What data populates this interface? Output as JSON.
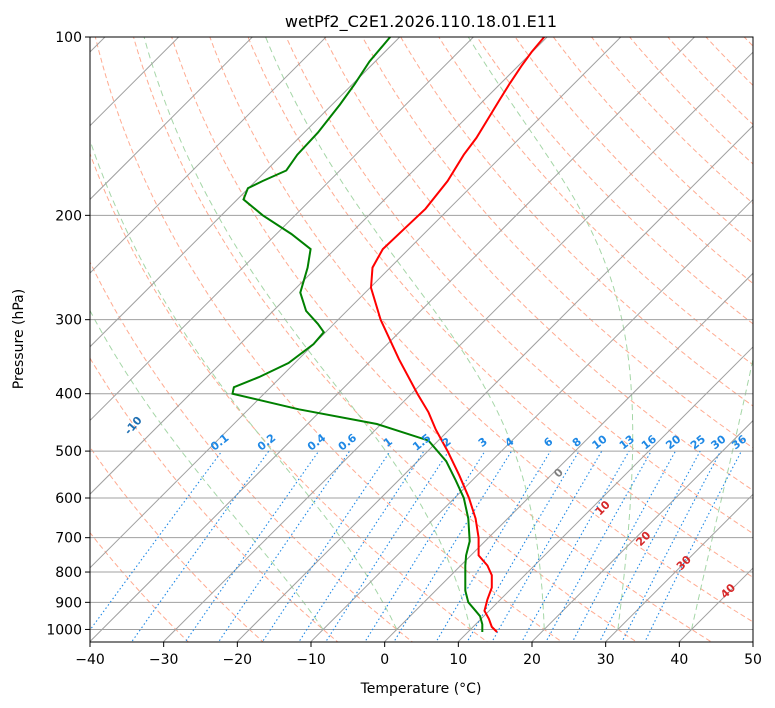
{
  "chart_data": {
    "type": "line",
    "title": "wetPf2_C2E1.2026.110.18.01.E11",
    "xlabel": "Temperature (°C)",
    "ylabel": "Pressure (hPa)",
    "xlim": [
      -40,
      50
    ],
    "ylim": [
      1050,
      100
    ],
    "y_scale": "log",
    "grid": true,
    "x_ticks": [
      "−40",
      "−30",
      "−20",
      "−10",
      "0",
      "10",
      "20",
      "30",
      "40",
      "50"
    ],
    "y_ticks": [
      {
        "p": 1000,
        "label": "1000"
      },
      {
        "p": 900,
        "label": "900"
      },
      {
        "p": 800,
        "label": "800"
      },
      {
        "p": 700,
        "label": "700"
      },
      {
        "p": 600,
        "label": "600"
      },
      {
        "p": 500,
        "label": "500"
      },
      {
        "p": 400,
        "label": "400"
      },
      {
        "p": 300,
        "label": "300"
      },
      {
        "p": 200,
        "label": "200"
      },
      {
        "p": 100,
        "label": "100"
      }
    ],
    "series": [
      {
        "color": "#ff0000",
        "points": [
          [
            15.3,
            1010
          ],
          [
            14.6,
            990
          ],
          [
            14.2,
            960
          ],
          [
            13.6,
            930
          ],
          [
            14.0,
            890
          ],
          [
            14.6,
            850
          ],
          [
            14.6,
            810
          ],
          [
            14.0,
            780
          ],
          [
            12.8,
            750
          ],
          [
            12.8,
            700
          ],
          [
            12.4,
            650
          ],
          [
            11.5,
            600
          ],
          [
            10.2,
            550
          ],
          [
            8.6,
            500
          ],
          [
            7.0,
            460
          ],
          [
            6.0,
            430
          ],
          [
            4.5,
            400
          ],
          [
            2.0,
            350
          ],
          [
            -0.5,
            300
          ],
          [
            -1.8,
            265
          ],
          [
            -1.6,
            245
          ],
          [
            -0.2,
            228
          ],
          [
            2.5,
            212
          ],
          [
            5.6,
            195
          ],
          [
            8.6,
            175
          ],
          [
            10.8,
            158
          ],
          [
            12.5,
            148
          ],
          [
            14.0,
            138
          ],
          [
            15.6,
            128
          ],
          [
            17.0,
            120
          ],
          [
            18.6,
            112
          ],
          [
            20.0,
            106
          ],
          [
            21.7,
            100
          ]
        ]
      },
      {
        "color": "#008000",
        "points": [
          [
            13.3,
            1010
          ],
          [
            13.3,
            980
          ],
          [
            13.0,
            950
          ],
          [
            12.4,
            930
          ],
          [
            11.4,
            900
          ],
          [
            11.0,
            860
          ],
          [
            11.0,
            820
          ],
          [
            11.0,
            780
          ],
          [
            11.1,
            750
          ],
          [
            11.6,
            710
          ],
          [
            11.4,
            650
          ],
          [
            10.8,
            600
          ],
          [
            9.7,
            560
          ],
          [
            8.4,
            520
          ],
          [
            6.0,
            480
          ],
          [
            -1.0,
            450
          ],
          [
            -11.6,
            425
          ],
          [
            -20.6,
            400
          ],
          [
            -20.4,
            390
          ],
          [
            -17.0,
            375
          ],
          [
            -13.0,
            355
          ],
          [
            -9.6,
            330
          ],
          [
            -8.2,
            315
          ],
          [
            -9.0,
            305
          ],
          [
            -10.6,
            290
          ],
          [
            -11.4,
            270
          ],
          [
            -10.4,
            245
          ],
          [
            -10.0,
            228
          ],
          [
            -12.6,
            215
          ],
          [
            -16.5,
            200
          ],
          [
            -19.1,
            188
          ],
          [
            -18.5,
            180
          ],
          [
            -16.5,
            175
          ],
          [
            -13.3,
            168
          ],
          [
            -11.8,
            158
          ],
          [
            -9.0,
            145
          ],
          [
            -6.0,
            130
          ],
          [
            -4.0,
            120
          ],
          [
            -2.0,
            110
          ],
          [
            0.8,
            100
          ]
        ]
      }
    ],
    "dry_adiabats": [
      -100,
      -90,
      -80,
      -70,
      -60,
      -50,
      -40,
      -30,
      -20,
      -10
    ],
    "mixing_ratio_labels": [
      "0.1",
      "0.2",
      "0.4",
      "0.6",
      "1",
      "1.5",
      "2",
      "3",
      "4",
      "6",
      "8",
      "10",
      "13",
      "16",
      "20",
      "25",
      "30",
      "36"
    ],
    "moist_labels": [
      "0",
      "10",
      "20",
      "30",
      "40"
    ],
    "colors": {
      "temperature": "#ff0000",
      "dewpoint": "#008000",
      "isotherm": "#a0a0a0",
      "isobar": "#a0a0a0",
      "dry_adiabat": "#ffab91",
      "moist_adiabat": "#a5d6a7",
      "mixing_ratio": "#1e88e5",
      "dry_label": "#1f6fb2",
      "moist_label": "#d62728",
      "zero_label": "#808080"
    }
  }
}
